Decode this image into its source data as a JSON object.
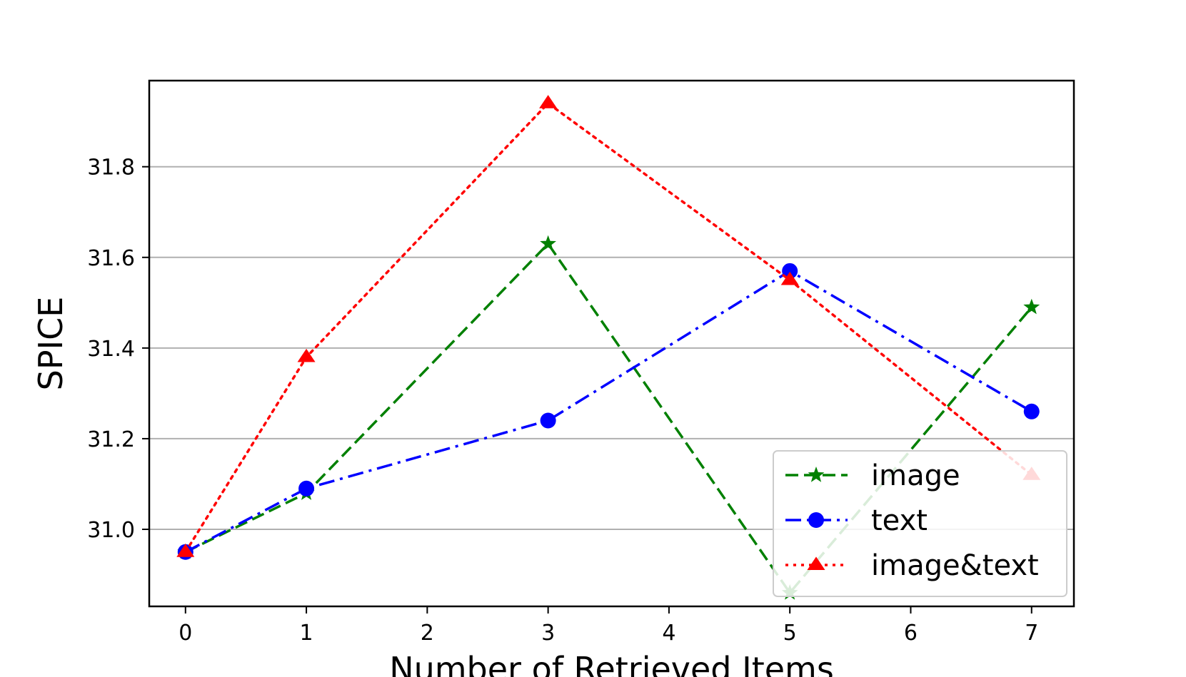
{
  "chart_data": {
    "type": "line",
    "xlabel": "Number of Retrieved Items",
    "ylabel": "SPICE",
    "x_ticks": [
      0,
      1,
      2,
      3,
      4,
      5,
      6,
      7
    ],
    "y_ticks": [
      31.0,
      31.2,
      31.4,
      31.6,
      31.8
    ],
    "x_tick_labels": [
      "0",
      "1",
      "2",
      "3",
      "4",
      "5",
      "6",
      "7"
    ],
    "y_tick_labels": [
      "31.0",
      "31.2",
      "31.4",
      "31.6",
      "31.8"
    ],
    "xlim": [
      -0.3,
      7.35
    ],
    "ylim": [
      30.83,
      31.99
    ],
    "grid": "horizontal",
    "legend_position": "lower-right",
    "series": [
      {
        "name": "image",
        "x": [
          0,
          1,
          3,
          5,
          7
        ],
        "y": [
          30.95,
          31.08,
          31.63,
          30.86,
          31.49
        ],
        "color": "#008000",
        "line_style": "dashed",
        "marker": "star"
      },
      {
        "name": "text",
        "x": [
          0,
          1,
          3,
          5,
          7
        ],
        "y": [
          30.95,
          31.09,
          31.24,
          31.57,
          31.26
        ],
        "color": "#0000ff",
        "line_style": "dashdot",
        "marker": "circle"
      },
      {
        "name": "image&text",
        "x": [
          0,
          1,
          3,
          5,
          7
        ],
        "y": [
          30.95,
          31.38,
          31.94,
          31.55,
          31.12
        ],
        "color": "#ff0000",
        "line_style": "dotted",
        "marker": "triangle"
      }
    ]
  }
}
